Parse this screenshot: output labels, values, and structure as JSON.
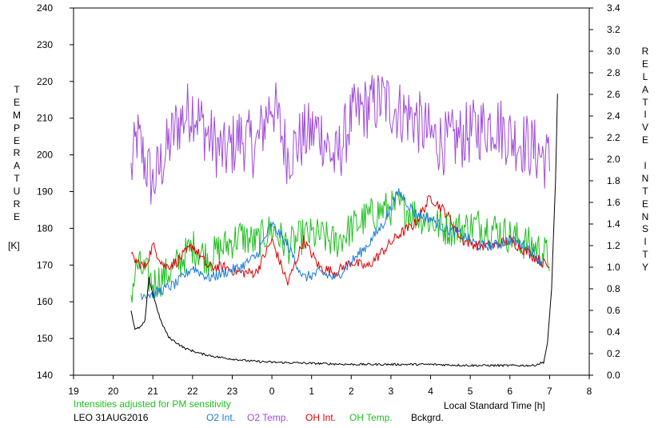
{
  "chart_data": {
    "type": "line",
    "station": "LEO 31AUG2016",
    "note": "Intensities adjusted for PM sensitivity",
    "xlabel": "Local Standard Time [h]",
    "ylabel_left": "TEMPERATURE",
    "ylabel_left_unit": "[K]",
    "ylabel_right": "RELATIVE INTENSITY",
    "x_ticks": [
      "19",
      "20",
      "21",
      "22",
      "23",
      "0",
      "1",
      "2",
      "3",
      "4",
      "5",
      "6",
      "7",
      "8"
    ],
    "y_left_ticks": [
      "240",
      "230",
      "220",
      "210",
      "200",
      "190",
      "180",
      "170",
      "160",
      "150",
      "140"
    ],
    "y_right_ticks": [
      "3.4",
      "3.2",
      "3.0",
      "2.8",
      "2.6",
      "2.4",
      "2.2",
      "2.0",
      "1.8",
      "1.6",
      "1.4",
      "1.2",
      "1.0",
      "0.8",
      "0.6",
      "0.4",
      "0.2",
      "0.0"
    ],
    "xlim": [
      19,
      32
    ],
    "ylim_left": [
      140,
      240
    ],
    "ylim_right": [
      0.0,
      3.4
    ],
    "legend": {
      "o2_int": {
        "label": "O2 Int.",
        "color": "#1a7bd8"
      },
      "o2_temp": {
        "label": "O2 Temp.",
        "color": "#a04bd8"
      },
      "oh_int": {
        "label": "OH Int.",
        "color": "#e00000"
      },
      "oh_temp": {
        "label": "OH Temp.",
        "color": "#1fbf1f"
      },
      "bckgrd": {
        "label": "Bckgrd.",
        "color": "#000000"
      }
    },
    "series": [
      {
        "key": "o2_temp",
        "axis": "left",
        "color": "#a04bd8",
        "noise": 9,
        "x": [
          20.45,
          20.6,
          20.8,
          21.0,
          21.3,
          21.6,
          22.0,
          22.4,
          22.8,
          23.2,
          23.6,
          24.0,
          24.4,
          24.8,
          25.2,
          25.6,
          26.0,
          26.4,
          26.8,
          27.2,
          27.6,
          28.0,
          28.4,
          28.8,
          29.2,
          29.6,
          30.0,
          30.4,
          30.8,
          31.0
        ],
        "y": [
          195,
          205,
          198,
          192,
          200,
          208,
          213,
          205,
          200,
          205,
          202,
          215,
          200,
          205,
          207,
          198,
          210,
          213,
          215,
          212,
          210,
          205,
          203,
          205,
          207,
          209,
          205,
          203,
          200,
          198
        ]
      },
      {
        "key": "oh_temp",
        "axis": "left",
        "color": "#1fbf1f",
        "noise": 5,
        "x": [
          20.45,
          20.6,
          20.8,
          21.0,
          21.3,
          21.6,
          22.0,
          22.4,
          22.8,
          23.2,
          23.6,
          24.0,
          24.4,
          24.8,
          25.2,
          25.6,
          26.0,
          26.4,
          26.8,
          27.2,
          27.6,
          28.0,
          28.4,
          28.8,
          29.2,
          29.6,
          30.0,
          30.4,
          30.8,
          31.0
        ],
        "y": [
          162,
          170,
          168,
          165,
          167,
          170,
          175,
          172,
          175,
          178,
          176,
          180,
          175,
          178,
          178,
          176,
          180,
          183,
          185,
          186,
          184,
          182,
          180,
          180,
          181,
          180,
          178,
          176,
          174,
          172
        ]
      },
      {
        "key": "oh_int",
        "axis": "right",
        "color": "#e00000",
        "noise": 0.05,
        "x": [
          20.45,
          20.6,
          20.8,
          21.0,
          21.3,
          21.6,
          22.0,
          22.4,
          22.8,
          23.2,
          23.6,
          24.0,
          24.4,
          24.8,
          25.2,
          25.6,
          26.0,
          26.4,
          26.8,
          27.2,
          27.6,
          28.0,
          28.4,
          28.8,
          29.2,
          29.6,
          30.0,
          30.4,
          30.8,
          31.0
        ],
        "y": [
          1.1,
          1.05,
          1.0,
          1.2,
          1.0,
          1.05,
          1.2,
          1.0,
          1.0,
          0.95,
          0.95,
          1.25,
          0.85,
          1.25,
          1.0,
          0.95,
          1.05,
          1.0,
          1.15,
          1.3,
          1.4,
          1.65,
          1.5,
          1.25,
          1.2,
          1.2,
          1.25,
          1.15,
          1.05,
          1.0
        ]
      },
      {
        "key": "o2_int",
        "axis": "right",
        "color": "#1a7bd8",
        "noise": 0.05,
        "x": [
          20.7,
          21.0,
          21.3,
          21.6,
          22.0,
          22.4,
          22.8,
          23.2,
          23.6,
          24.0,
          24.4,
          24.8,
          25.2,
          25.6,
          26.0,
          26.4,
          26.8,
          27.2,
          27.6,
          28.0,
          28.4,
          28.8,
          29.2,
          29.6,
          30.0,
          30.4,
          30.8
        ],
        "y": [
          0.75,
          0.75,
          0.8,
          0.85,
          1.0,
          0.9,
          0.95,
          1.0,
          1.1,
          1.4,
          1.2,
          0.9,
          0.95,
          0.9,
          1.05,
          1.2,
          1.4,
          1.7,
          1.5,
          1.45,
          1.35,
          1.3,
          1.2,
          1.2,
          1.25,
          1.2,
          1.05
        ]
      },
      {
        "key": "bckgrd",
        "axis": "right",
        "color": "#000000",
        "noise": 0.01,
        "x": [
          20.45,
          20.55,
          20.7,
          20.8,
          20.9,
          21.0,
          21.2,
          21.4,
          21.8,
          22.2,
          22.6,
          23.0,
          23.5,
          24.0,
          25.0,
          26.0,
          27.0,
          28.0,
          29.0,
          30.0,
          30.6,
          30.85,
          30.95,
          31.05,
          31.15,
          31.2
        ],
        "y": [
          0.6,
          0.42,
          0.45,
          0.5,
          0.9,
          0.75,
          0.5,
          0.35,
          0.25,
          0.2,
          0.17,
          0.15,
          0.13,
          0.12,
          0.11,
          0.1,
          0.1,
          0.1,
          0.09,
          0.09,
          0.09,
          0.12,
          0.3,
          0.8,
          1.8,
          2.6
        ]
      }
    ]
  }
}
